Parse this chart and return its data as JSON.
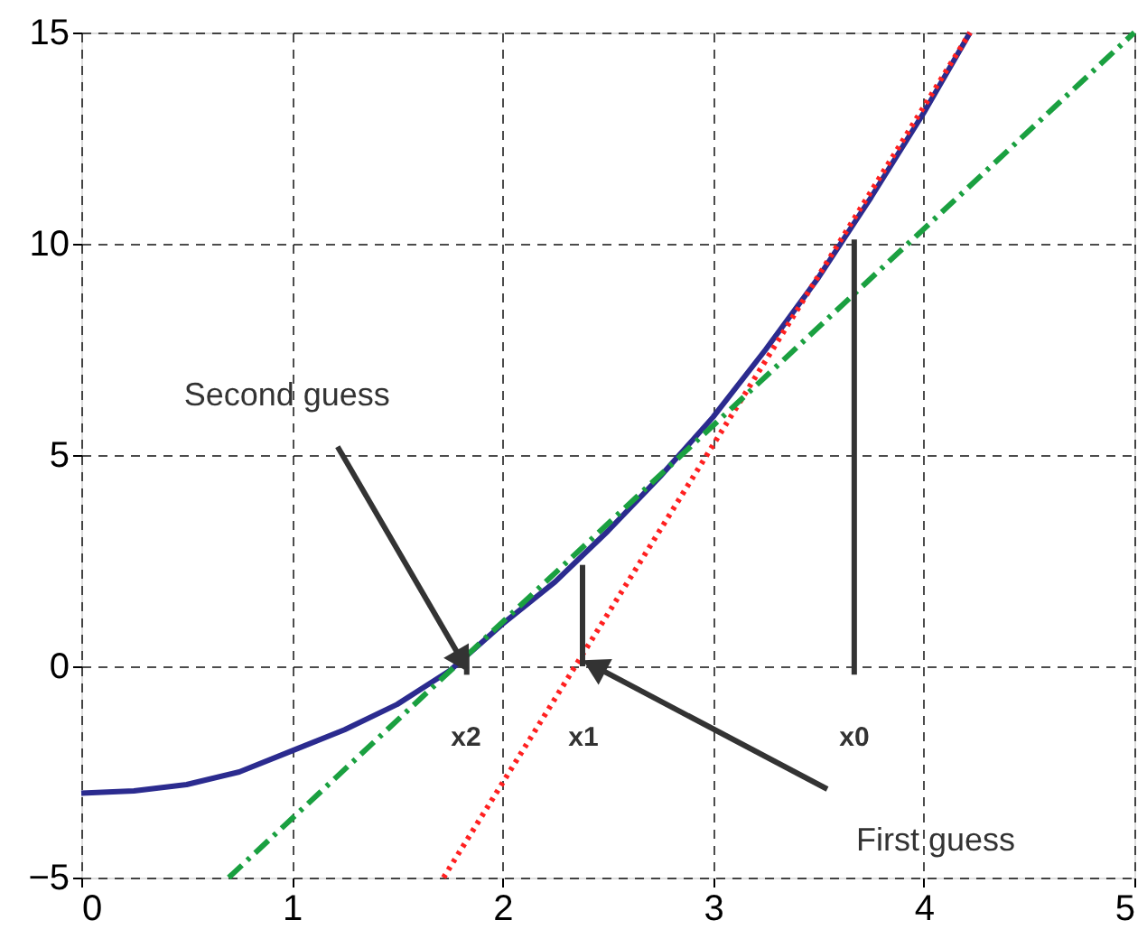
{
  "chart_data": {
    "type": "line",
    "series": [
      {
        "color": "#2b2b8f",
        "line_style": "solid",
        "x": [
          0,
          0.25,
          0.5,
          0.75,
          1,
          1.25,
          1.5,
          1.75,
          2,
          2.25,
          2.5,
          2.75,
          3,
          3.25,
          3.5,
          3.75,
          4,
          4.22
        ],
        "values": [
          -3,
          -2.95,
          -2.8,
          -2.5,
          -2.0,
          -1.5,
          -0.9,
          -0.1,
          1.0,
          2.0,
          3.2,
          4.5,
          5.9,
          7.5,
          9.2,
          11.1,
          13.1,
          15
        ]
      },
      {
        "color": "#ff2020",
        "line_style": "dotted",
        "x": [
          1.72,
          4.22
        ],
        "values": [
          -5,
          15
        ]
      },
      {
        "color": "#1aa040",
        "line_style": "dashed",
        "x": [
          0.7,
          5
        ],
        "values": [
          -5,
          15
        ]
      },
      {
        "color": "#333333",
        "line_style": "solid",
        "x": [
          3.67,
          3.67
        ],
        "values": [
          -0.2,
          10.1
        ]
      },
      {
        "color": "#333333",
        "line_style": "solid",
        "x": [
          2.38,
          2.38
        ],
        "values": [
          0,
          2.4
        ]
      },
      {
        "color": "#333333",
        "line_style": "solid",
        "x": [
          1.83,
          1.83
        ],
        "values": [
          -0.2,
          0.3
        ]
      }
    ],
    "annotations": [
      {
        "text": "Second guess",
        "x": 1.8,
        "y": 0.2
      },
      "First guess",
      "x0",
      "x1",
      "x2"
    ],
    "xlim": [
      0,
      5
    ],
    "xticks": [
      0,
      1,
      2,
      3,
      4,
      5
    ],
    "ylim": [
      -5,
      15
    ],
    "yticks": [
      -5,
      0,
      5,
      10,
      15
    ],
    "grid": true,
    "marker": "none"
  }
}
